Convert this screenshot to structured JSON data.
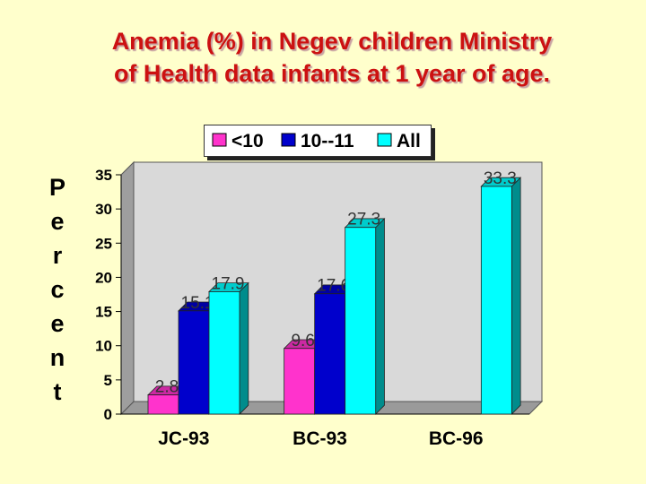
{
  "title_line1": "Anemia (%) in Negev children Ministry",
  "title_line2": "of Health data infants at 1 year of age.",
  "ylabel": "Percent",
  "colors": {
    "title": "#cc1111",
    "background": "#ffffcc",
    "series": [
      "#ff33cc",
      "#0000cc",
      "#00ffff"
    ]
  },
  "chart_data": {
    "type": "bar",
    "title": "Anemia (%) in Negev children Ministry of Health data infants at 1 year of age.",
    "ylabel": "Percent",
    "xlabel": "",
    "categories": [
      "JC-93",
      "BC-93",
      "BC-96"
    ],
    "series": [
      {
        "name": "<10",
        "values": [
          2.8,
          9.6,
          null
        ]
      },
      {
        "name": "10--11",
        "values": [
          15.1,
          17.6,
          null
        ]
      },
      {
        "name": "All",
        "values": [
          17.9,
          27.3,
          33.3
        ]
      }
    ],
    "ylim": [
      0,
      35
    ],
    "yticks": [
      0,
      5,
      10,
      15,
      20,
      25,
      30,
      35
    ],
    "value_labels": [
      [
        "2.8",
        "9.6",
        ""
      ],
      [
        "15.1",
        "17.6",
        ""
      ],
      [
        "17.9",
        "27.3",
        "33.3"
      ]
    ],
    "grid": false,
    "legend_position": "top"
  }
}
